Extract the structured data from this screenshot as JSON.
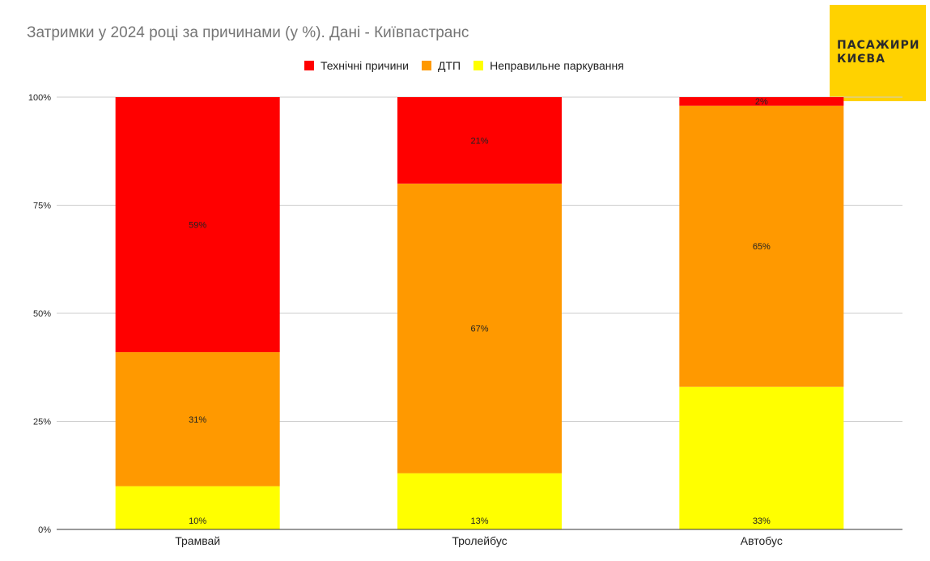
{
  "title": "Затримки у 2024 році за причинами (у %). Дані - Київпастранс",
  "logo": {
    "line1": "ПАСАЖИРИ",
    "line2": "КИЄВА",
    "color": "#ffd200"
  },
  "legend": [
    {
      "label": "Технічні причини",
      "color": "#ff0000"
    },
    {
      "label": "ДТП",
      "color": "#ff9900"
    },
    {
      "label": "Неправильне паркування",
      "color": "#ffff00"
    }
  ],
  "chart_data": {
    "type": "bar",
    "stacked": true,
    "title": "Затримки у 2024 році за причинами (у %). Дані - Київпастранс",
    "categories": [
      "Трамвай",
      "Тролейбус",
      "Автобус"
    ],
    "series": [
      {
        "name": "Неправильне паркування",
        "color": "#ffff00",
        "values": [
          10,
          13,
          33
        ],
        "labels": [
          "10%",
          "13%",
          "33%"
        ]
      },
      {
        "name": "ДТП",
        "color": "#ff9900",
        "values": [
          31,
          67,
          65
        ],
        "labels": [
          "31%",
          "67%",
          "65%"
        ]
      },
      {
        "name": "Технічні причини",
        "color": "#ff0000",
        "values": [
          59,
          21,
          2
        ],
        "labels": [
          "59%",
          "21%",
          "2%"
        ]
      }
    ],
    "yticks": [
      "0%",
      "25%",
      "50%",
      "75%",
      "100%"
    ],
    "ylim": [
      0,
      100
    ],
    "xlabel": "",
    "ylabel": "",
    "grid": true,
    "legend_position": "top"
  }
}
